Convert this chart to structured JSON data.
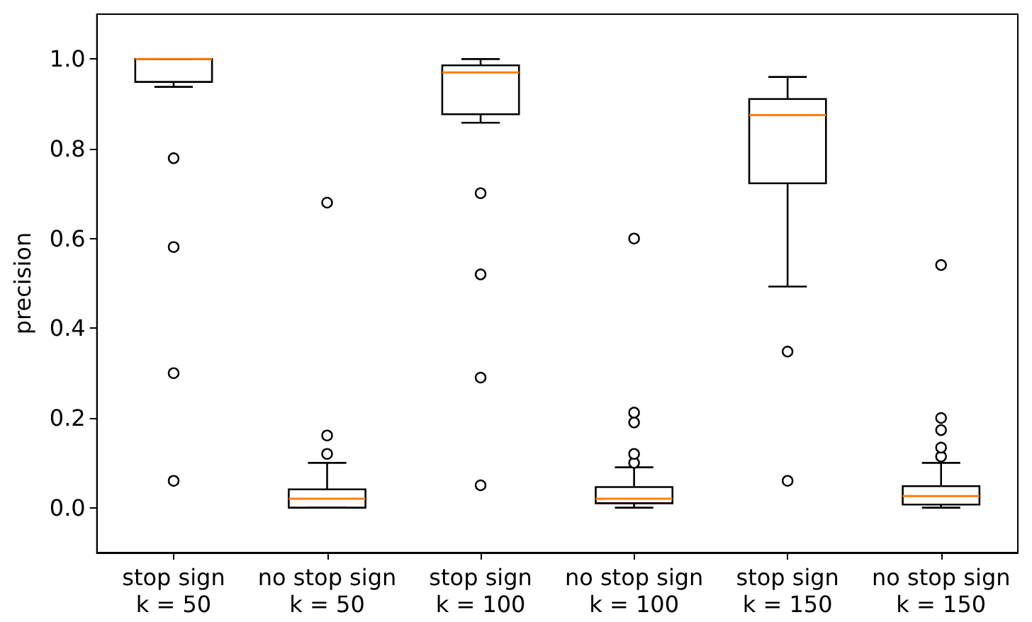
{
  "chart_data": {
    "type": "box",
    "ylabel": "precision",
    "categories": [
      "stop sign\nk = 50",
      "no stop sign\nk = 50",
      "stop sign\nk = 100",
      "no stop sign\nk = 100",
      "stop sign\nk = 150",
      "no stop sign\nk = 150"
    ],
    "ylim": [
      -0.1,
      1.1
    ],
    "yticks": [
      {
        "value": 0,
        "label": "0.0"
      },
      0.2,
      0.4,
      0.6,
      0.8,
      {
        "value": 1,
        "label": "1.0"
      }
    ],
    "grid": false,
    "series": [
      {
        "color": "#000000",
        "boxes": [
          {
            "low": 0.938,
            "q1": 0.949,
            "median": 1.0,
            "q3": 1.0,
            "high": 1.0,
            "outliers": [
              0.779,
              0.581,
              0.3,
              0.06
            ]
          },
          {
            "low": 0.0,
            "q1": 0.0,
            "median": 0.02,
            "q3": 0.041,
            "high": 0.1,
            "outliers": [
              0.12,
              0.161,
              0.68
            ]
          },
          {
            "low": 0.858,
            "q1": 0.877,
            "median": 0.97,
            "q3": 0.986,
            "high": 1.0,
            "outliers": [
              0.701,
              0.52,
              0.29,
              0.05
            ]
          },
          {
            "low": 0.0,
            "q1": 0.01,
            "median": 0.02,
            "q3": 0.046,
            "high": 0.09,
            "outliers": [
              0.1,
              0.12,
              0.19,
              0.212,
              0.6
            ]
          },
          {
            "low": 0.493,
            "q1": 0.723,
            "median": 0.875,
            "q3": 0.911,
            "high": 0.96,
            "outliers": [
              0.348,
              0.06
            ]
          },
          {
            "low": 0.0,
            "q1": 0.007,
            "median": 0.026,
            "q3": 0.048,
            "high": 0.1,
            "outliers": [
              0.114,
              0.134,
              0.173,
              0.2,
              0.541
            ]
          }
        ]
      }
    ]
  }
}
